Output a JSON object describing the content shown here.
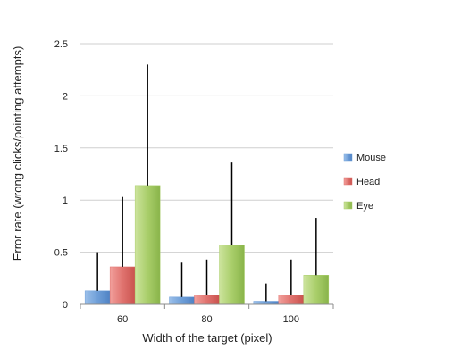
{
  "chart_data": {
    "type": "bar",
    "title": "",
    "xlabel": "Width of the target (pixel)",
    "ylabel": "Error rate (wrong clicks/pointing attempts)",
    "categories": [
      "60",
      "80",
      "100"
    ],
    "ylim": [
      0,
      2.5
    ],
    "yticks": [
      "0",
      "0.5",
      "1",
      "1.5",
      "2",
      "2.5"
    ],
    "grid": true,
    "legend_position": "right",
    "series": [
      {
        "name": "Mouse",
        "color": "#6f9fd8",
        "values": [
          0.13,
          0.07,
          0.03
        ],
        "error": [
          0.37,
          0.33,
          0.17
        ]
      },
      {
        "name": "Head",
        "color": "#e0736f",
        "values": [
          0.36,
          0.09,
          0.09
        ],
        "error": [
          0.67,
          0.34,
          0.34
        ]
      },
      {
        "name": "Eye",
        "color": "#a9ce6a",
        "values": [
          1.14,
          0.57,
          0.28
        ],
        "error": [
          1.16,
          0.79,
          0.55
        ]
      }
    ]
  }
}
